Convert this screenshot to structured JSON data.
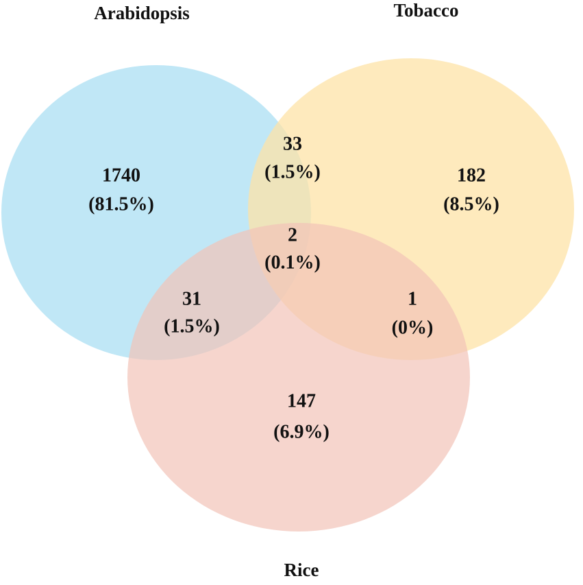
{
  "sets": [
    {
      "label": "Arabidopsis",
      "color": "#b5e3f5"
    },
    {
      "label": "Tobacco",
      "color": "#fde3a7"
    },
    {
      "label": "Rice",
      "color": "#f2c3b8"
    }
  ],
  "regions": [
    {
      "count": 1740,
      "percent": "(81.5%)"
    },
    {
      "count": 33,
      "percent": "(1.5%)"
    },
    {
      "count": 182,
      "percent": "(8.5%)"
    },
    {
      "count": 2,
      "percent": "(0.1%)"
    },
    {
      "count": 31,
      "percent": "(1.5%)"
    },
    {
      "count": 1,
      "percent": "(0%)"
    },
    {
      "count": 147,
      "percent": "(6.9%)"
    }
  ]
}
